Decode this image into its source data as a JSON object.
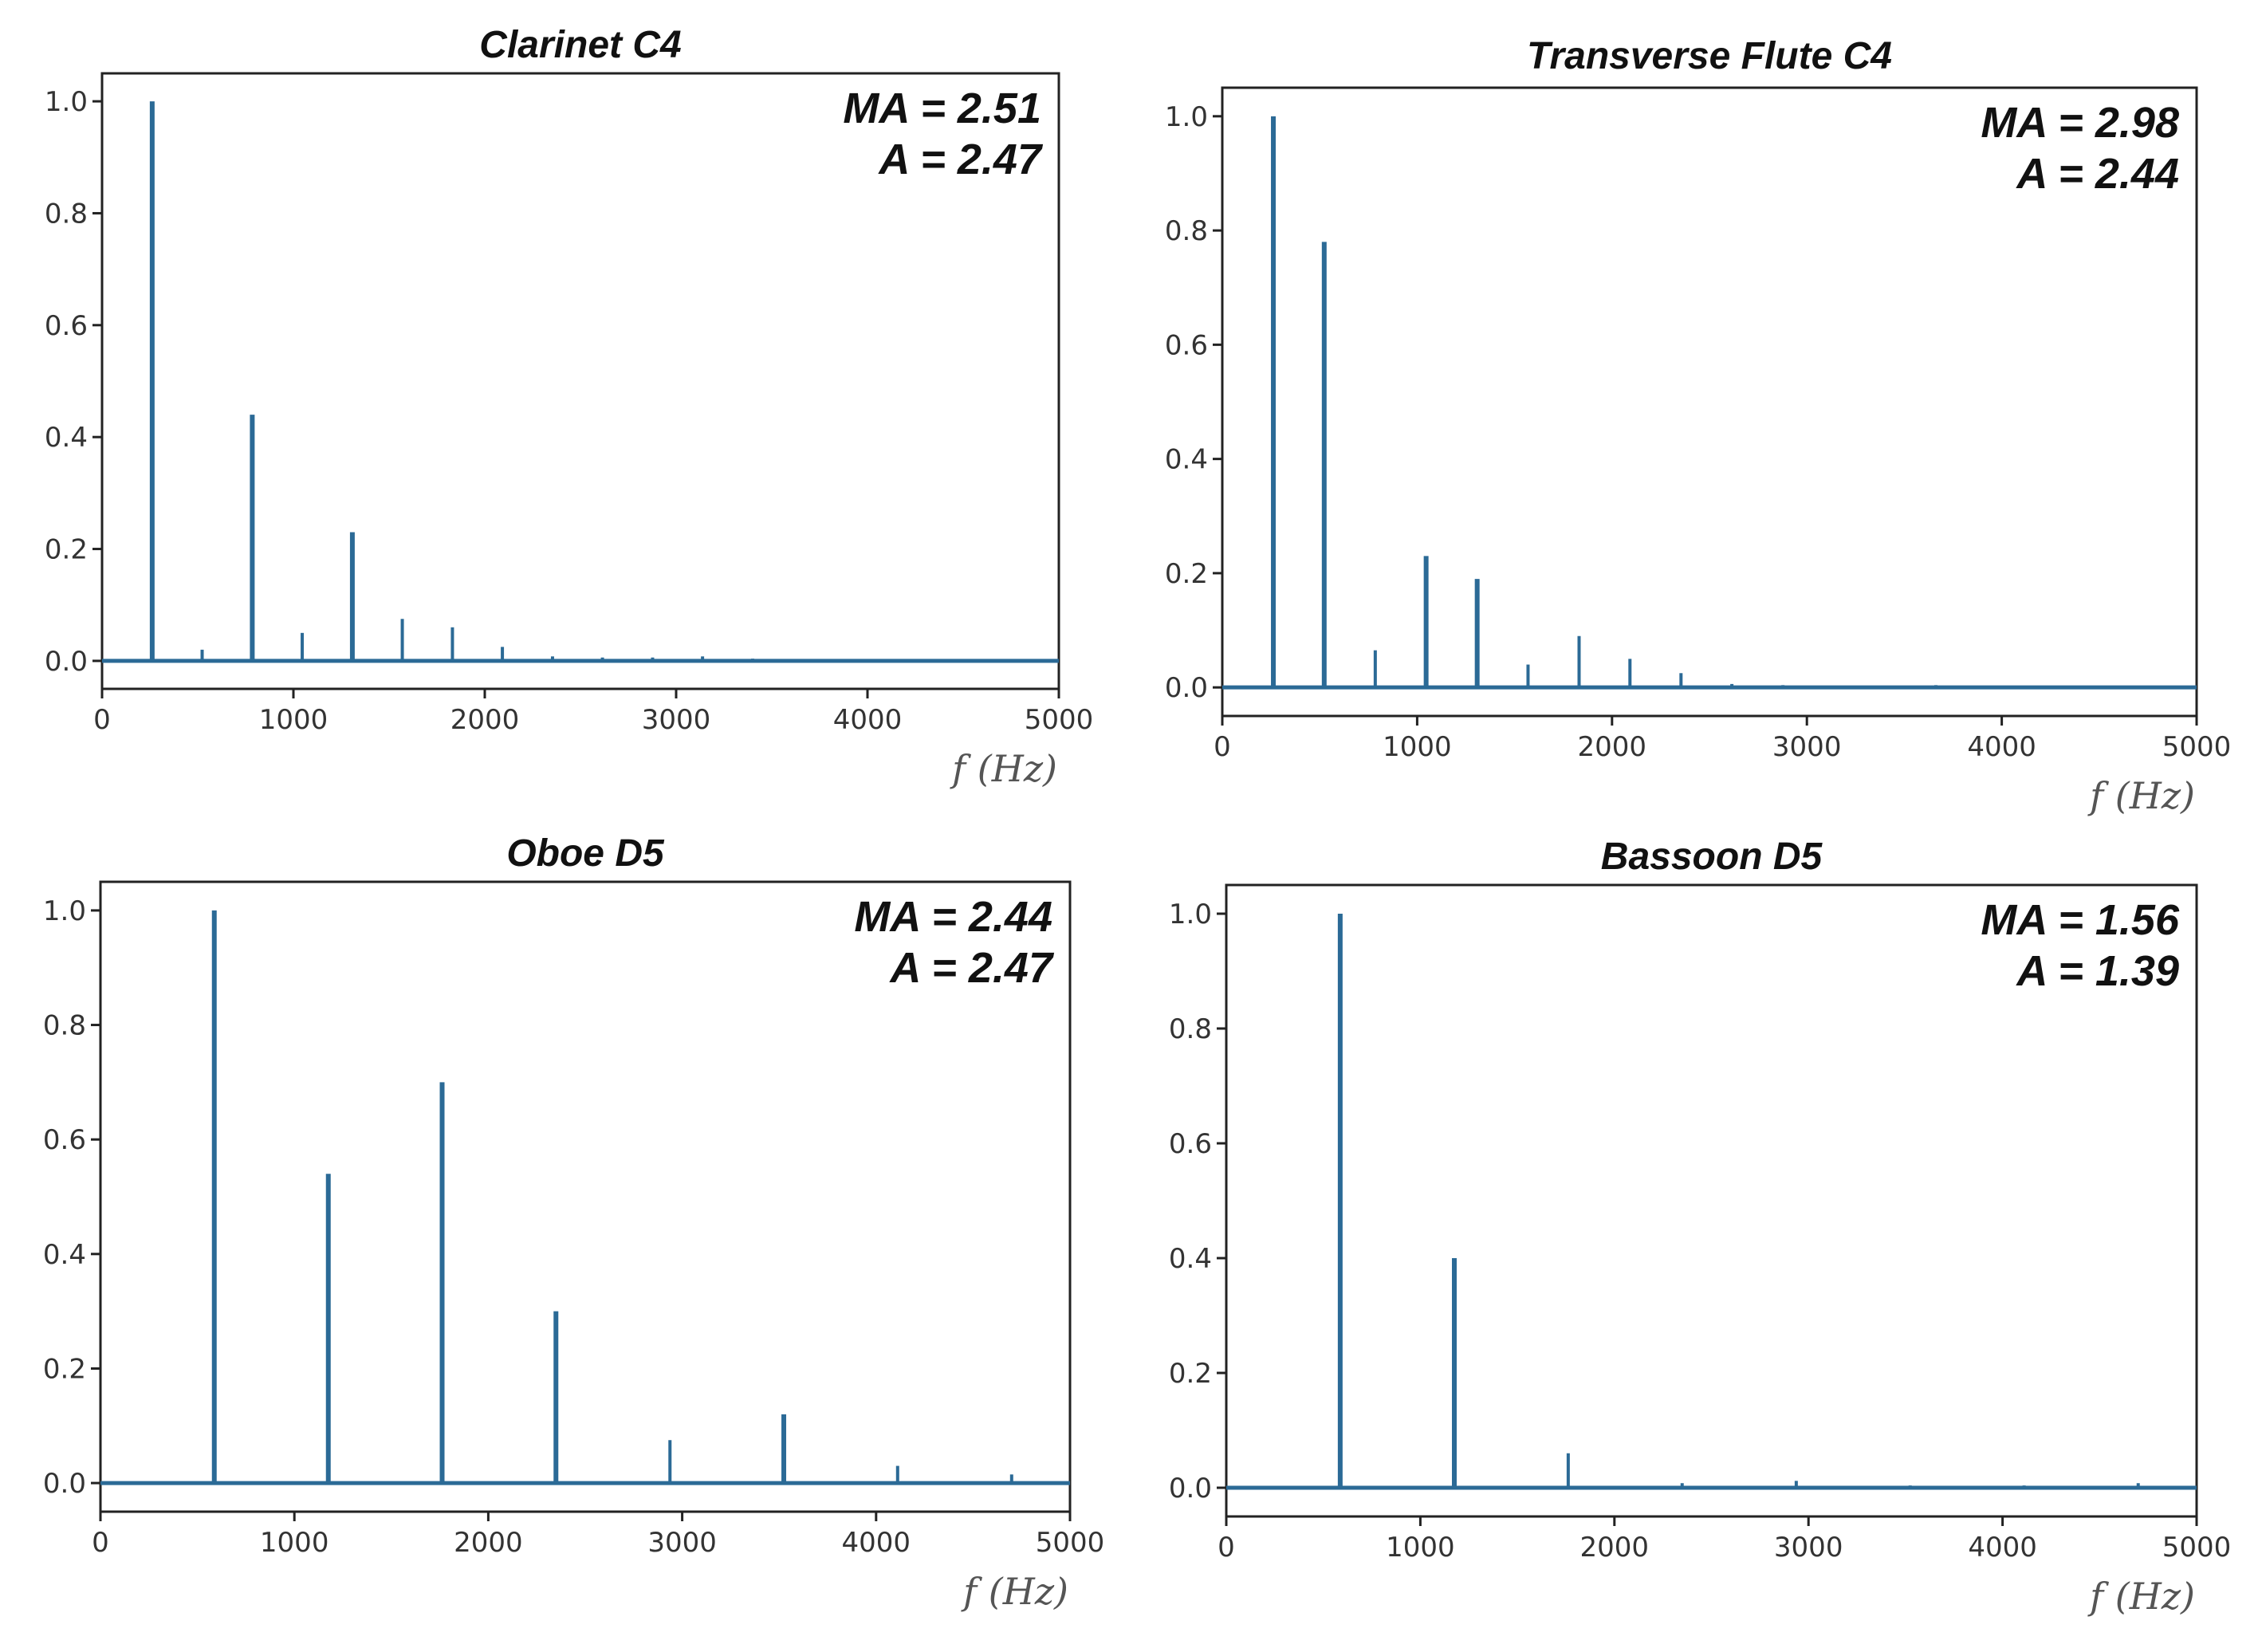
{
  "colors": {
    "series": "#2b6a96",
    "axis": "#222222",
    "text": "#111111"
  },
  "chart_data": [
    {
      "type": "line",
      "title": "Clarinet C4",
      "xlabel": "f  (Hz)",
      "ylabel": "",
      "xlim": [
        0,
        5000
      ],
      "ylim": [
        -0.05,
        1.05
      ],
      "xticks": [
        0,
        1000,
        2000,
        3000,
        4000,
        5000
      ],
      "yticks": [
        0.0,
        0.2,
        0.4,
        0.6,
        0.8,
        1.0
      ],
      "ytick_labels": [
        "0.0",
        "0.2",
        "0.4",
        "0.6",
        "0.8",
        "1.0"
      ],
      "annotations": [
        "MA = 2.51",
        "A = 2.47"
      ],
      "peaks": [
        {
          "f": 262,
          "a": 1.0
        },
        {
          "f": 523,
          "a": 0.02
        },
        {
          "f": 785,
          "a": 0.44
        },
        {
          "f": 1046,
          "a": 0.05
        },
        {
          "f": 1308,
          "a": 0.23
        },
        {
          "f": 1569,
          "a": 0.075
        },
        {
          "f": 1831,
          "a": 0.06
        },
        {
          "f": 2092,
          "a": 0.025
        },
        {
          "f": 2354,
          "a": 0.008
        },
        {
          "f": 2615,
          "a": 0.006
        },
        {
          "f": 2877,
          "a": 0.006
        },
        {
          "f": 3138,
          "a": 0.008
        },
        {
          "f": 3400,
          "a": 0.004
        },
        {
          "f": 3662,
          "a": 0.003
        }
      ]
    },
    {
      "type": "line",
      "title": "Transverse Flute C4",
      "xlabel": "f  (Hz)",
      "ylabel": "",
      "xlim": [
        0,
        5000
      ],
      "ylim": [
        -0.05,
        1.05
      ],
      "xticks": [
        0,
        1000,
        2000,
        3000,
        4000,
        5000
      ],
      "yticks": [
        0.0,
        0.2,
        0.4,
        0.6,
        0.8,
        1.0
      ],
      "ytick_labels": [
        "0.0",
        "0.2",
        "0.4",
        "0.6",
        "0.8",
        "1.0"
      ],
      "annotations": [
        "MA = 2.98",
        "A = 2.44"
      ],
      "peaks": [
        {
          "f": 262,
          "a": 1.0
        },
        {
          "f": 523,
          "a": 0.78
        },
        {
          "f": 785,
          "a": 0.065
        },
        {
          "f": 1046,
          "a": 0.23
        },
        {
          "f": 1308,
          "a": 0.19
        },
        {
          "f": 1569,
          "a": 0.04
        },
        {
          "f": 1831,
          "a": 0.09
        },
        {
          "f": 2092,
          "a": 0.05
        },
        {
          "f": 2354,
          "a": 0.025
        },
        {
          "f": 2615,
          "a": 0.006
        },
        {
          "f": 2877,
          "a": 0.004
        },
        {
          "f": 3662,
          "a": 0.004
        },
        {
          "f": 4185,
          "a": 0.003
        }
      ]
    },
    {
      "type": "line",
      "title": "Oboe D5",
      "xlabel": "f  (Hz)",
      "ylabel": "",
      "xlim": [
        0,
        5000
      ],
      "ylim": [
        -0.05,
        1.05
      ],
      "xticks": [
        0,
        1000,
        2000,
        3000,
        4000,
        5000
      ],
      "yticks": [
        0.0,
        0.2,
        0.4,
        0.6,
        0.8,
        1.0
      ],
      "ytick_labels": [
        "0.0",
        "0.2",
        "0.4",
        "0.6",
        "0.8",
        "1.0"
      ],
      "annotations": [
        "MA = 2.44",
        "A = 2.47"
      ],
      "peaks": [
        {
          "f": 587,
          "a": 1.0
        },
        {
          "f": 1175,
          "a": 0.54
        },
        {
          "f": 1762,
          "a": 0.7
        },
        {
          "f": 2349,
          "a": 0.3
        },
        {
          "f": 2937,
          "a": 0.075
        },
        {
          "f": 3524,
          "a": 0.12
        },
        {
          "f": 4111,
          "a": 0.03
        },
        {
          "f": 4699,
          "a": 0.015
        }
      ]
    },
    {
      "type": "line",
      "title": "Bassoon D5",
      "xlabel": "f  (Hz)",
      "ylabel": "",
      "xlim": [
        0,
        5000
      ],
      "ylim": [
        -0.05,
        1.05
      ],
      "xticks": [
        0,
        1000,
        2000,
        3000,
        4000,
        5000
      ],
      "yticks": [
        0.0,
        0.2,
        0.4,
        0.6,
        0.8,
        1.0
      ],
      "ytick_labels": [
        "0.0",
        "0.2",
        "0.4",
        "0.6",
        "0.8",
        "1.0"
      ],
      "annotations": [
        "MA = 1.56",
        "A = 1.39"
      ],
      "peaks": [
        {
          "f": 587,
          "a": 1.0
        },
        {
          "f": 1175,
          "a": 0.4
        },
        {
          "f": 1762,
          "a": 0.06
        },
        {
          "f": 2349,
          "a": 0.008
        },
        {
          "f": 2937,
          "a": 0.012
        },
        {
          "f": 3524,
          "a": 0.004
        },
        {
          "f": 4111,
          "a": 0.004
        },
        {
          "f": 4699,
          "a": 0.008
        }
      ]
    }
  ]
}
